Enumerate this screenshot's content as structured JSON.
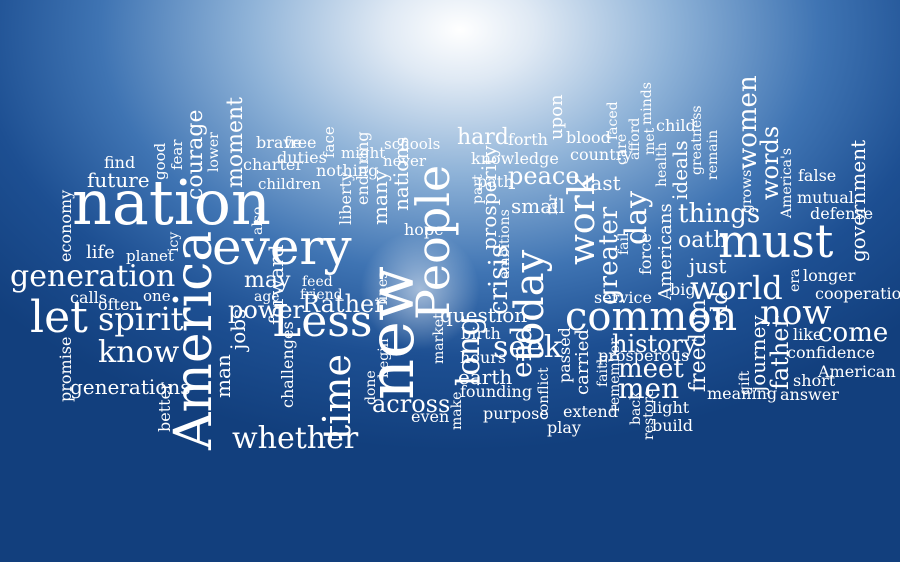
{
  "words": [
    {
      "text": "nation"
    },
    {
      "text": "every"
    },
    {
      "text": "America"
    },
    {
      "text": "new"
    },
    {
      "text": "must"
    },
    {
      "text": "common"
    },
    {
      "text": "work"
    },
    {
      "text": "today"
    },
    {
      "text": "People"
    },
    {
      "text": "Less"
    },
    {
      "text": "generation"
    },
    {
      "text": "let"
    },
    {
      "text": "spirit"
    },
    {
      "text": "know"
    },
    {
      "text": "time"
    },
    {
      "text": "whether"
    },
    {
      "text": "world"
    },
    {
      "text": "now"
    },
    {
      "text": "come"
    },
    {
      "text": "things"
    },
    {
      "text": "peace"
    },
    {
      "text": "day"
    },
    {
      "text": "greater"
    },
    {
      "text": "meet"
    },
    {
      "text": "men"
    },
    {
      "text": "women"
    },
    {
      "text": "words"
    },
    {
      "text": "government"
    },
    {
      "text": "economy"
    },
    {
      "text": "future"
    },
    {
      "text": "life"
    },
    {
      "text": "generations"
    },
    {
      "text": "courage"
    },
    {
      "text": "moment"
    },
    {
      "text": "find"
    },
    {
      "text": "good"
    },
    {
      "text": "fear"
    },
    {
      "text": "lower"
    },
    {
      "text": "brave"
    },
    {
      "text": "free"
    },
    {
      "text": "face"
    },
    {
      "text": "charter"
    },
    {
      "text": "duties"
    },
    {
      "text": "nothing"
    },
    {
      "text": "children"
    },
    {
      "text": "might"
    },
    {
      "text": "schools"
    },
    {
      "text": "never"
    },
    {
      "text": "hard"
    },
    {
      "text": "forth"
    },
    {
      "text": "blood"
    },
    {
      "text": "faced"
    },
    {
      "text": "minds"
    },
    {
      "text": "child"
    },
    {
      "text": "knowledge"
    },
    {
      "text": "country"
    },
    {
      "text": "afford"
    },
    {
      "text": "met"
    },
    {
      "text": "health"
    },
    {
      "text": "path"
    },
    {
      "text": "last"
    },
    {
      "text": "care"
    },
    {
      "text": "ideals"
    },
    {
      "text": "greatness"
    },
    {
      "text": "remain"
    },
    {
      "text": "grows"
    },
    {
      "text": "America's"
    },
    {
      "text": "false"
    },
    {
      "text": "mutual"
    },
    {
      "text": "defense"
    },
    {
      "text": "oath"
    },
    {
      "text": "just"
    },
    {
      "text": "era"
    },
    {
      "text": "longer"
    },
    {
      "text": "cooperation"
    },
    {
      "text": "like"
    },
    {
      "text": "confidence"
    },
    {
      "text": "American"
    },
    {
      "text": "short"
    },
    {
      "text": "answer"
    },
    {
      "text": "gift"
    },
    {
      "text": "meaning"
    },
    {
      "text": "father"
    },
    {
      "text": "journey"
    },
    {
      "text": "old"
    },
    {
      "text": "freedom"
    },
    {
      "text": "history"
    },
    {
      "text": "prosperous"
    },
    {
      "text": "service"
    },
    {
      "text": "big"
    },
    {
      "text": "fail"
    },
    {
      "text": "Americans"
    },
    {
      "text": "force"
    },
    {
      "text": "carried"
    },
    {
      "text": "seek"
    },
    {
      "text": "end"
    },
    {
      "text": "crisis"
    },
    {
      "text": "long"
    },
    {
      "text": "question"
    },
    {
      "text": "birth"
    },
    {
      "text": "hours"
    },
    {
      "text": "earth"
    },
    {
      "text": "across"
    },
    {
      "text": "founding"
    },
    {
      "text": "purpose"
    },
    {
      "text": "make"
    },
    {
      "text": "even"
    },
    {
      "text": "market"
    },
    {
      "text": "done"
    },
    {
      "text": "begin"
    },
    {
      "text": "lines"
    },
    {
      "text": "hope"
    },
    {
      "text": "nations"
    },
    {
      "text": "many"
    },
    {
      "text": "enduring"
    },
    {
      "text": "liberty"
    },
    {
      "text": "feed"
    },
    {
      "text": "friend"
    },
    {
      "text": "Rather"
    },
    {
      "text": "may"
    },
    {
      "text": "age"
    },
    {
      "text": "power"
    },
    {
      "text": "jobs"
    },
    {
      "text": "forward"
    },
    {
      "text": "challenges"
    },
    {
      "text": "man"
    },
    {
      "text": "better"
    },
    {
      "text": "promise"
    },
    {
      "text": "calls"
    },
    {
      "text": "often"
    },
    {
      "text": "one"
    },
    {
      "text": "planet"
    },
    {
      "text": "icy"
    },
    {
      "text": "also"
    },
    {
      "text": "small"
    },
    {
      "text": "prosperity"
    },
    {
      "text": "part"
    },
    {
      "text": "far"
    },
    {
      "text": "ambitions"
    },
    {
      "text": "upon"
    },
    {
      "text": "conflict"
    },
    {
      "text": "passed"
    },
    {
      "text": "faith"
    },
    {
      "text": "remember"
    },
    {
      "text": "back"
    },
    {
      "text": "restore"
    },
    {
      "text": "light"
    },
    {
      "text": "build"
    },
    {
      "text": "extend"
    },
    {
      "text": "play"
    }
  ]
}
